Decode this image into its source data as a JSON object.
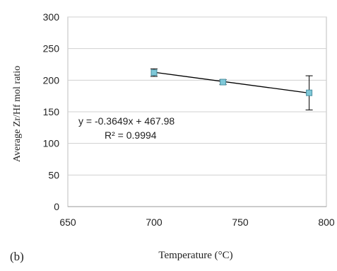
{
  "panel_label": "(b)",
  "chart_data": {
    "type": "scatter",
    "xlabel": "Temperature (°C)",
    "ylabel": "Average Zr/Hf mol ratio",
    "xlim": [
      650,
      800
    ],
    "ylim": [
      0,
      300
    ],
    "x_ticks": [
      650,
      700,
      750,
      800
    ],
    "y_ticks": [
      0,
      50,
      100,
      150,
      200,
      250,
      300
    ],
    "grid": "horizontal",
    "series": [
      {
        "x": [
          700,
          740,
          790
        ],
        "y": [
          212,
          197,
          180
        ],
        "y_err": [
          6,
          4,
          27
        ],
        "marker_color": "#7fc8d8"
      }
    ],
    "trendline": {
      "type": "linear",
      "slope": -0.3649,
      "intercept": 467.98,
      "x_range": [
        700,
        790
      ],
      "color": "#000000"
    },
    "annotations": {
      "equation": "y = -0.3649x + 467.98",
      "r_squared": "R² = 0.9994"
    }
  }
}
